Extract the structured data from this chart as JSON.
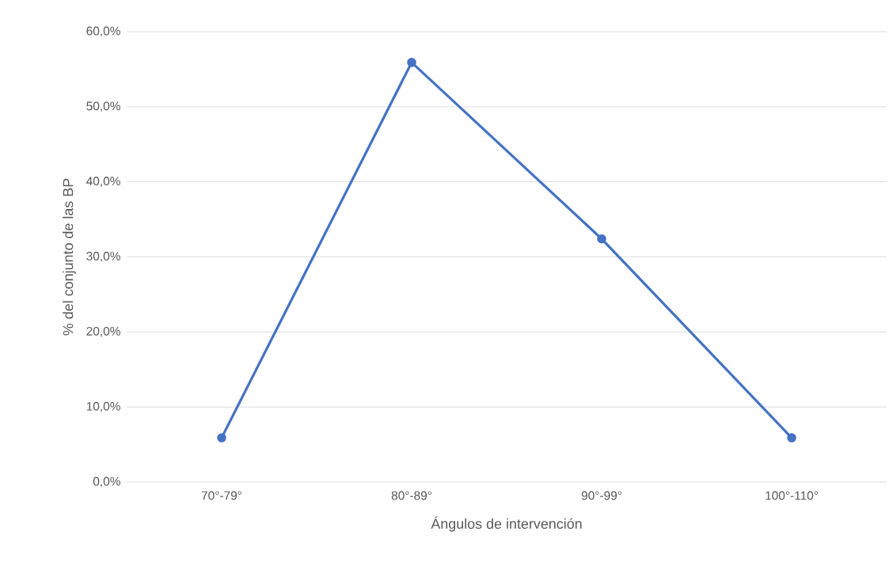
{
  "chart_data": {
    "type": "line",
    "xlabel": "Ángulos de intervención",
    "ylabel": "% del conjunto de las BP",
    "categories": [
      "70°-79°",
      "80°-89°",
      "90°-99°",
      "100°-110°"
    ],
    "series": [
      {
        "color": "#4472c4",
        "values": [
          5.9,
          55.9,
          32.4,
          5.9
        ]
      }
    ],
    "ylim": [
      0,
      60
    ],
    "yticks": [
      {
        "value": 0,
        "label": "0,0%"
      },
      {
        "value": 10,
        "label": "10,0%"
      },
      {
        "value": 20,
        "label": "20,0%"
      },
      {
        "value": 30,
        "label": "30,0%"
      },
      {
        "value": 40,
        "label": "40,0%"
      },
      {
        "value": 50,
        "label": "50,0%"
      },
      {
        "value": 60,
        "label": "60,0%"
      }
    ],
    "grid": "y",
    "marker": "circle",
    "line_style": "solid"
  }
}
